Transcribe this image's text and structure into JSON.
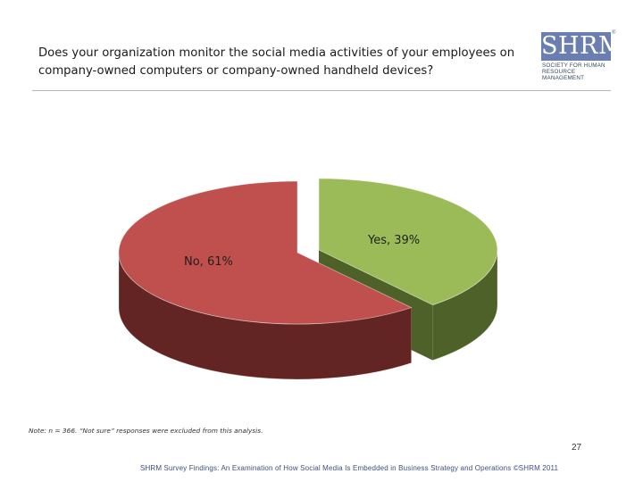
{
  "header": {
    "title_line1": "Does your organization monitor the social media activities of your employees on",
    "title_line2": "company-owned computers or company-owned handheld devices?"
  },
  "logo": {
    "mark": "SHRM",
    "registered": "®",
    "line1": "Society for Human",
    "line2": "Resource Management"
  },
  "chart_data": {
    "type": "pie",
    "style": "3d-exploded",
    "title": "",
    "slices": [
      {
        "label": "Yes",
        "value": 39,
        "display": "Yes, 39%",
        "color": "#9bbb59",
        "side_color": "#4e6128"
      },
      {
        "label": "No",
        "value": 61,
        "display": "No, 61%",
        "color": "#c0504d",
        "side_color": "#632523"
      }
    ]
  },
  "footnote": "Note: n = 366. “Not sure” responses were excluded from this analysis.",
  "page_number": "27",
  "footer": "SHRM Survey Findings: An Examination of How Social Media Is Embedded in Business Strategy and Operations ©SHRM 2011"
}
